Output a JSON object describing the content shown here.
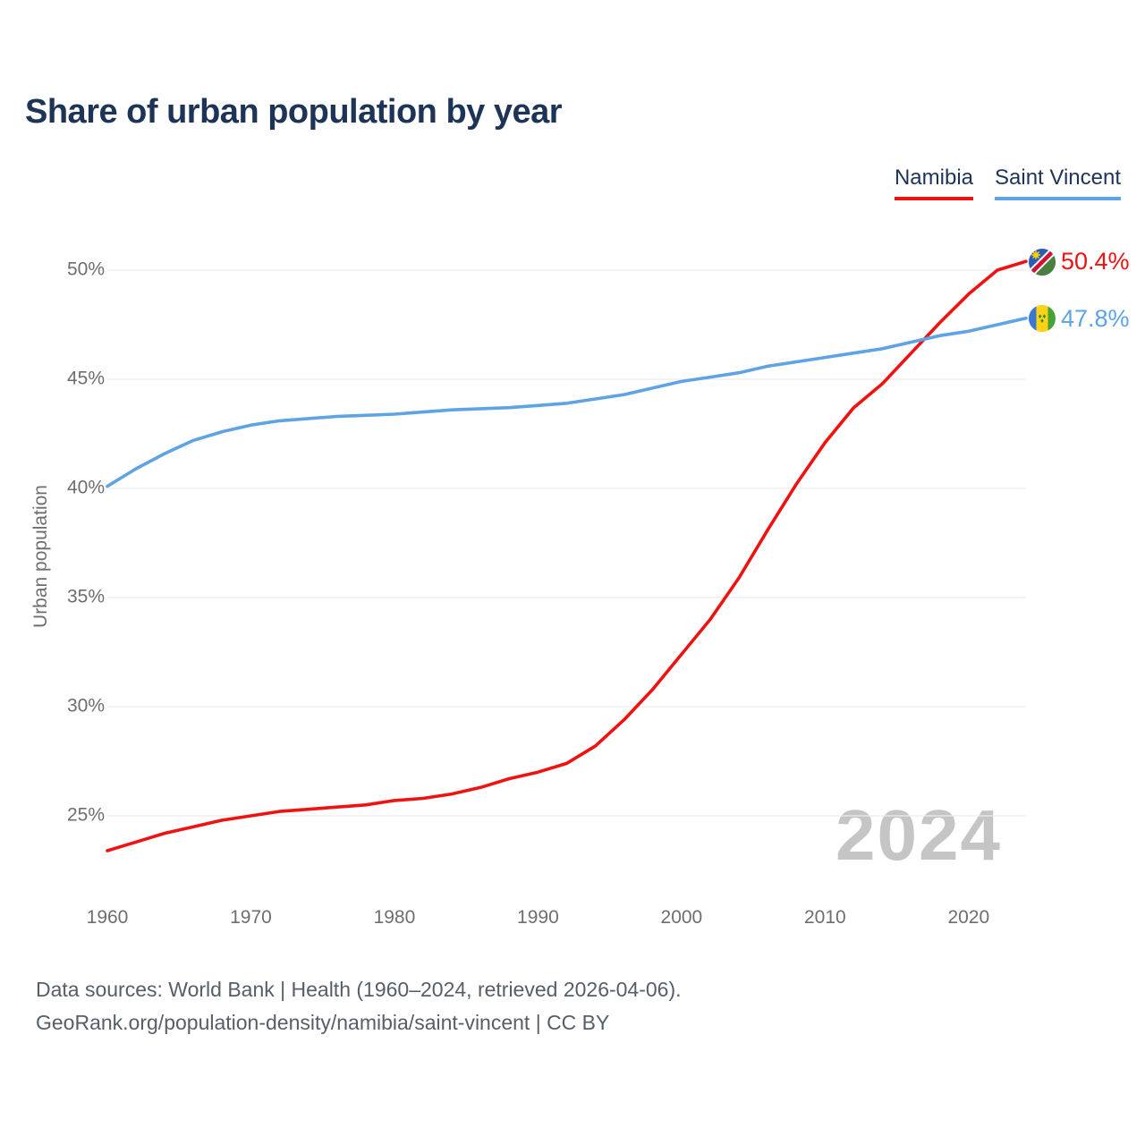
{
  "page": {
    "title": "Share of urban population by year"
  },
  "chart_data": {
    "type": "line",
    "title": "Share of urban population by year",
    "xlabel": "",
    "ylabel": "Urban population",
    "x": [
      1960,
      1962,
      1964,
      1966,
      1968,
      1970,
      1972,
      1974,
      1976,
      1978,
      1980,
      1982,
      1984,
      1986,
      1988,
      1990,
      1992,
      1994,
      1996,
      1998,
      2000,
      2002,
      2004,
      2006,
      2008,
      2010,
      2012,
      2014,
      2016,
      2018,
      2020,
      2022,
      2024
    ],
    "series": [
      {
        "name": "Namibia",
        "color": "#ee1211",
        "end_label": "50.4%",
        "flag_icon": "namibia-flag",
        "values": [
          23.4,
          23.8,
          24.2,
          24.5,
          24.8,
          25.0,
          25.2,
          25.3,
          25.4,
          25.5,
          25.7,
          25.8,
          26.0,
          26.3,
          26.7,
          27.0,
          27.4,
          28.2,
          29.4,
          30.8,
          32.4,
          34.0,
          35.9,
          38.1,
          40.2,
          42.1,
          43.7,
          44.8,
          46.2,
          47.6,
          48.9,
          50.0,
          50.4
        ]
      },
      {
        "name": "Saint Vincent",
        "color": "#5ea3e4",
        "end_label": "47.8%",
        "flag_icon": "saint-vincent-flag",
        "values": [
          40.1,
          40.9,
          41.6,
          42.2,
          42.6,
          42.9,
          43.1,
          43.2,
          43.3,
          43.35,
          43.4,
          43.5,
          43.6,
          43.65,
          43.7,
          43.8,
          43.9,
          44.1,
          44.3,
          44.6,
          44.9,
          45.1,
          45.3,
          45.6,
          45.8,
          46.0,
          46.2,
          46.4,
          46.7,
          47.0,
          47.2,
          47.5,
          47.8
        ]
      }
    ],
    "ylim": [
      23,
      51
    ],
    "yticks": [
      25,
      30,
      35,
      40,
      45,
      50
    ],
    "ytick_suffix": "%",
    "xticks": [
      1960,
      1970,
      1980,
      1990,
      2000,
      2010,
      2020
    ],
    "grid": "horizontal",
    "gridline_color": "#ececec",
    "legend_position": "top-right",
    "watermark": "2024"
  },
  "footer": {
    "line1": "Data sources: World Bank | Health (1960–2024, retrieved 2026-04-06).",
    "line2": "GeoRank.org/population-density/namibia/saint-vincent | CC BY"
  }
}
